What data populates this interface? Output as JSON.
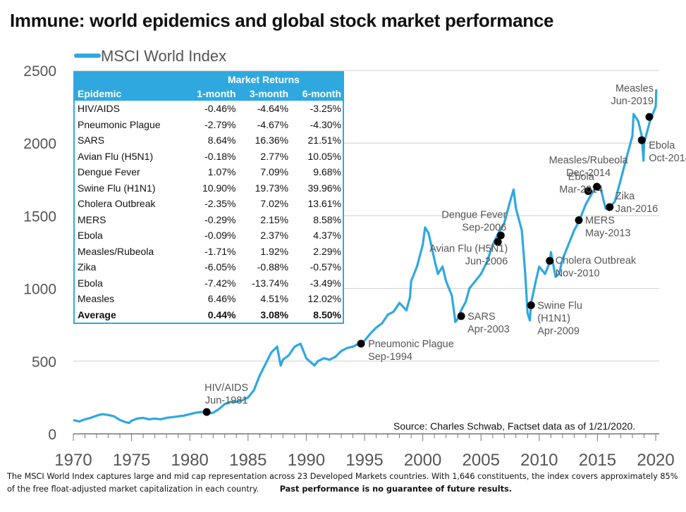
{
  "title": "Immune: world epidemics and global stock market performance",
  "source": "Source: Charles Schwab, Factset data as of 1/21/2020.",
  "footnote": {
    "text": "The MSCI World Index captures large and mid cap representation across 23 Developed Markets countries. With 1,646 constituents, the index covers approximately 85% of the free float-adjusted market capitalization in each country.",
    "disclaimer": "Past performance is no guarantee of future results."
  },
  "table": {
    "group_header": "Market Returns",
    "columns": [
      "Epidemic",
      "1-month",
      "3-month",
      "6-month"
    ],
    "rows": [
      [
        "HIV/AIDS",
        "-0.46%",
        "-4.64%",
        "-3.25%"
      ],
      [
        "Pneumonic Plague",
        "-2.79%",
        "-4.67%",
        "-4.30%"
      ],
      [
        "SARS",
        "8.64%",
        "16.36%",
        "21.51%"
      ],
      [
        "Avian Flu (H5N1)",
        "-0.18%",
        "2.77%",
        "10.05%"
      ],
      [
        "Dengue Fever",
        "1.07%",
        "7.09%",
        "9.68%"
      ],
      [
        "Swine Flu (H1N1)",
        "10.90%",
        "19.73%",
        "39.96%"
      ],
      [
        "Cholera Outbreak",
        "-2.35%",
        "7.02%",
        "13.61%"
      ],
      [
        "MERS",
        "-0.29%",
        "2.15%",
        "8.58%"
      ],
      [
        "Ebola",
        "-0.09%",
        "2.37%",
        "4.37%"
      ],
      [
        "Measles/Rubeola",
        "-1.71%",
        "1.92%",
        "2.29%"
      ],
      [
        "Zika",
        "-6.05%",
        "-0.88%",
        "-0.57%"
      ],
      [
        "Ebola",
        "-7.42%",
        "-13.74%",
        "-3.49%"
      ],
      [
        "Measles",
        "6.46%",
        "4.51%",
        "12.02%"
      ]
    ],
    "average": [
      "Average",
      "0.44%",
      "3.08%",
      "8.50%"
    ]
  },
  "chart_data": {
    "type": "line",
    "xlim": [
      1970,
      2020.3
    ],
    "ylim": [
      0,
      2500
    ],
    "xticks": [
      1970,
      1975,
      1980,
      1985,
      1990,
      1995,
      2000,
      2005,
      2010,
      2015,
      2020
    ],
    "yticks": [
      0,
      500,
      1000,
      1500,
      2000,
      2500
    ],
    "grid": "horizontal",
    "legend": "top-left",
    "colors": {
      "line": "#2fa8e0",
      "marker": "#000000",
      "grid": "#d0d0d0"
    },
    "series": [
      {
        "name": "MSCI World Index",
        "x": [
          1970,
          1970.5,
          1971,
          1971.5,
          1972,
          1972.5,
          1973,
          1973.5,
          1974,
          1974.5,
          1974.8,
          1975,
          1975.5,
          1976,
          1976.5,
          1977,
          1977.5,
          1978,
          1978.5,
          1979,
          1979.5,
          1980,
          1980.5,
          1981,
          1981.5,
          1982,
          1982.5,
          1983,
          1983.5,
          1984,
          1984.5,
          1985,
          1985.5,
          1986,
          1986.5,
          1987,
          1987.5,
          1987.8,
          1988,
          1988.5,
          1989,
          1989.5,
          1990,
          1990.7,
          1991,
          1991.5,
          1992,
          1992.5,
          1993,
          1993.5,
          1994,
          1994.5,
          1995,
          1995.5,
          1996,
          1996.5,
          1997,
          1997.5,
          1998,
          1998.6,
          1998.9,
          1999,
          1999.5,
          2000,
          2000.2,
          2000.5,
          2001,
          2001.3,
          2001.7,
          2002,
          2002.5,
          2002.8,
          2003,
          2003.3,
          2003.7,
          2004,
          2004.5,
          2005,
          2005.5,
          2006,
          2006.5,
          2007,
          2007.5,
          2007.8,
          2008,
          2008.5,
          2008.8,
          2009,
          2009.2,
          2009.3,
          2009.7,
          2010,
          2010.5,
          2010.9,
          2011,
          2011.4,
          2011.7,
          2012,
          2012.5,
          2013,
          2013.4,
          2014,
          2014.5,
          2015,
          2015.3,
          2015.7,
          2016,
          2016.1,
          2016.5,
          2017,
          2017.5,
          2018,
          2018.1,
          2018.5,
          2018.8,
          2018.95,
          2019,
          2019.5,
          2020,
          2020.05
        ],
        "y": [
          95,
          85,
          100,
          110,
          125,
          135,
          130,
          120,
          95,
          80,
          75,
          90,
          105,
          110,
          100,
          105,
          100,
          110,
          115,
          120,
          125,
          135,
          145,
          150,
          140,
          145,
          170,
          205,
          220,
          220,
          230,
          250,
          300,
          400,
          480,
          560,
          600,
          470,
          510,
          540,
          600,
          620,
          520,
          470,
          500,
          520,
          510,
          530,
          570,
          590,
          600,
          620,
          640,
          690,
          730,
          760,
          820,
          840,
          900,
          850,
          940,
          1050,
          1150,
          1300,
          1420,
          1380,
          1200,
          1100,
          1150,
          1050,
          950,
          770,
          790,
          850,
          910,
          1000,
          1050,
          1100,
          1180,
          1300,
          1380,
          1450,
          1600,
          1680,
          1550,
          1400,
          1100,
          830,
          780,
          900,
          1050,
          1150,
          1100,
          1180,
          1250,
          1080,
          1100,
          1200,
          1300,
          1400,
          1460,
          1580,
          1650,
          1720,
          1680,
          1550,
          1540,
          1560,
          1600,
          1750,
          1900,
          2050,
          2200,
          2150,
          2050,
          1880,
          2000,
          2150,
          2250,
          2370
        ]
      }
    ],
    "annotations": [
      {
        "label": [
          "HIV/AIDS",
          "Jun-1981"
        ],
        "x": 1981.45,
        "y": 150,
        "align": "above"
      },
      {
        "label": [
          "Pneumonic Plague",
          "Sep-1994"
        ],
        "x": 1994.7,
        "y": 620,
        "align": "right"
      },
      {
        "label": [
          "SARS",
          "Apr-2003"
        ],
        "x": 2003.3,
        "y": 810,
        "align": "right"
      },
      {
        "label": [
          "Avian Flu (H5N1)",
          "Jun-2006"
        ],
        "x": 2006.45,
        "y": 1320,
        "align": "left-below"
      },
      {
        "label": [
          "Dengue Fever",
          "Sep-2006"
        ],
        "x": 2006.7,
        "y": 1365,
        "align": "left-above"
      },
      {
        "label": [
          "Swine Flu",
          "(H1N1)",
          "Apr-2009"
        ],
        "x": 2009.3,
        "y": 885,
        "align": "right"
      },
      {
        "label": [
          "Cholera Outbreak",
          "Nov-2010"
        ],
        "x": 2010.9,
        "y": 1190,
        "align": "right"
      },
      {
        "label": [
          "MERS",
          "May-2013"
        ],
        "x": 2013.4,
        "y": 1470,
        "align": "right"
      },
      {
        "label": [
          "Ebola",
          "Mar-2014"
        ],
        "x": 2014.2,
        "y": 1670,
        "align": "left"
      },
      {
        "label": [
          "Measles/Rubeola",
          "Dec-2014"
        ],
        "x": 2014.95,
        "y": 1700,
        "align": "above"
      },
      {
        "label": [
          "Zika",
          "Jan-2016"
        ],
        "x": 2016.05,
        "y": 1560,
        "align": "right"
      },
      {
        "label": [
          "Ebola",
          "Oct-2018"
        ],
        "x": 2018.8,
        "y": 2020,
        "align": "right"
      },
      {
        "label": [
          "Measles",
          "Jun-2019"
        ],
        "x": 2019.45,
        "y": 2180,
        "align": "left-above"
      }
    ]
  }
}
